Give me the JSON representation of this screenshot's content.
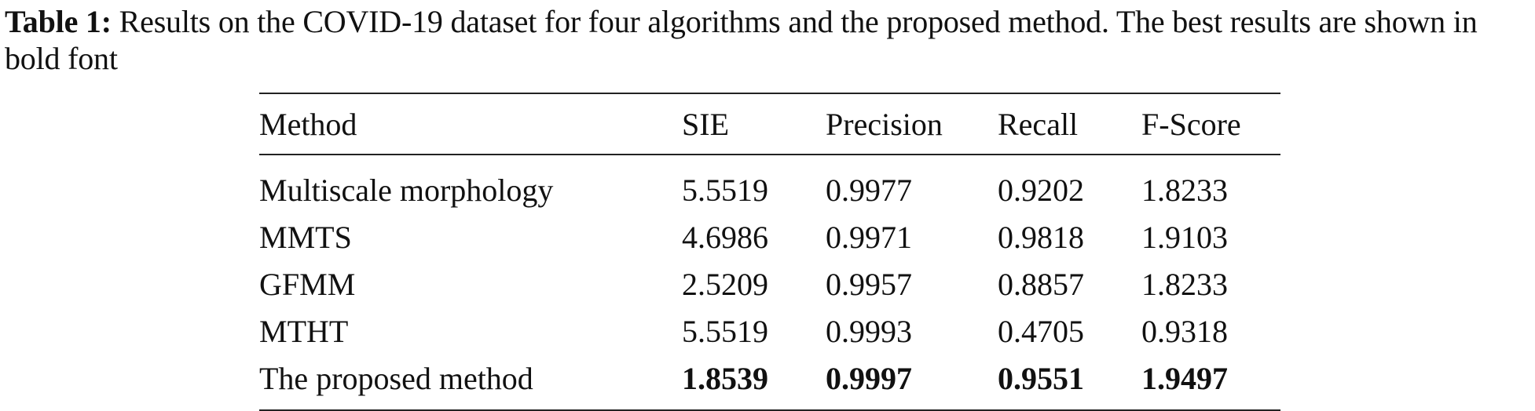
{
  "caption": {
    "label": "Table 1:",
    "text": "Results on the COVID-19 dataset for four algorithms and the proposed method. The best results are shown in bold font"
  },
  "table": {
    "headers": [
      "Method",
      "SIE",
      "Precision",
      "Recall",
      "F-Score"
    ],
    "rows": [
      {
        "method": "Multiscale morphology",
        "sie": "5.5519",
        "precision": "0.9977",
        "recall": "0.9202",
        "fscore": "1.8233",
        "best": false
      },
      {
        "method": "MMTS",
        "sie": "4.6986",
        "precision": "0.9971",
        "recall": "0.9818",
        "fscore": "1.9103",
        "best": false
      },
      {
        "method": "GFMM",
        "sie": "2.5209",
        "precision": "0.9957",
        "recall": "0.8857",
        "fscore": "1.8233",
        "best": false
      },
      {
        "method": "MTHT",
        "sie": "5.5519",
        "precision": "0.9993",
        "recall": "0.4705",
        "fscore": "0.9318",
        "best": false
      },
      {
        "method": "The proposed method",
        "sie": "1.8539",
        "precision": "0.9997",
        "recall": "0.9551",
        "fscore": "1.9497",
        "best": true
      }
    ]
  }
}
